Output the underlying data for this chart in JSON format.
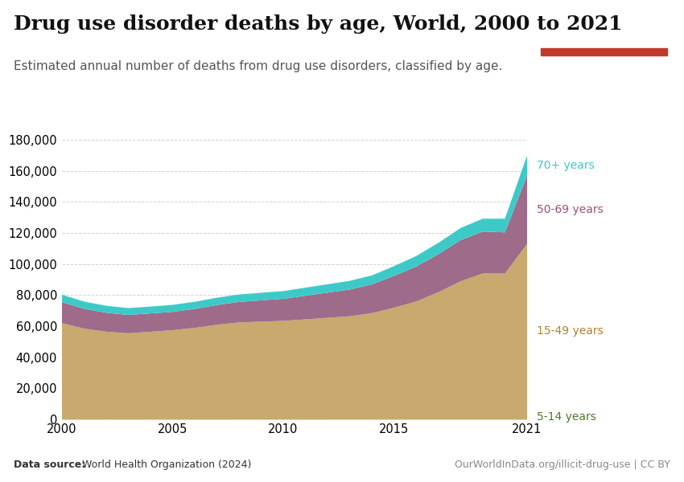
{
  "title": "Drug use disorder deaths by age, World, 2000 to 2021",
  "subtitle": "Estimated annual number of deaths from drug use disorders, classified by age.",
  "datasource_bold": "Data source:",
  "datasource_rest": " World Health Organization (2024)",
  "credit": "OurWorldInData.org/illicit-drug-use | CC BY",
  "years": [
    2000,
    2001,
    2002,
    2003,
    2004,
    2005,
    2006,
    2007,
    2008,
    2009,
    2010,
    2011,
    2012,
    2013,
    2014,
    2015,
    2016,
    2017,
    2018,
    2019,
    2020,
    2021
  ],
  "age_5_14": [
    200,
    190,
    185,
    180,
    175,
    175,
    170,
    170,
    165,
    165,
    160,
    160,
    158,
    155,
    155,
    155,
    155,
    155,
    155,
    155,
    155,
    155
  ],
  "age_15_49": [
    62000,
    58500,
    56500,
    55500,
    56500,
    57500,
    59000,
    61000,
    62500,
    63000,
    63500,
    64500,
    65500,
    66500,
    68500,
    72000,
    76000,
    82000,
    89000,
    94000,
    94000,
    113000
  ],
  "age_50_69": [
    13500,
    12800,
    12200,
    11800,
    11800,
    11800,
    12200,
    12700,
    13200,
    13700,
    14200,
    15200,
    16200,
    17200,
    18500,
    20500,
    22500,
    24500,
    26500,
    27000,
    26500,
    44000
  ],
  "age_70plus": [
    4800,
    4600,
    4500,
    4400,
    4400,
    4500,
    4600,
    4700,
    4800,
    4900,
    5000,
    5200,
    5400,
    5600,
    5800,
    6300,
    6800,
    7300,
    7800,
    8300,
    8800,
    13000
  ],
  "color_15_49": "#c8a96e",
  "color_50_69": "#9e6b8a",
  "color_70plus": "#3ec9c9",
  "color_label_70plus": "#3ec9c9",
  "color_label_5069": "#9e4f7a",
  "color_label_1549": "#b08030",
  "color_label_514": "#4a7a30",
  "ylim": [
    0,
    180000
  ],
  "yticks": [
    0,
    20000,
    40000,
    60000,
    80000,
    100000,
    120000,
    140000,
    160000,
    180000
  ],
  "background_color": "#ffffff",
  "grid_color": "#cccccc",
  "title_fontsize": 18,
  "subtitle_fontsize": 11,
  "tick_fontsize": 10.5,
  "logo_bg": "#1d3461",
  "logo_red": "#c0392b"
}
